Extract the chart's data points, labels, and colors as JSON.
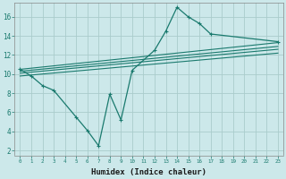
{
  "xlabel": "Humidex (Indice chaleur)",
  "background_color": "#cce8ea",
  "grid_color": "#aacccc",
  "line_color": "#1a7a6e",
  "xlim": [
    -0.5,
    23.5
  ],
  "ylim": [
    1.5,
    17.5
  ],
  "xtick_labels": [
    "0",
    "1",
    "2",
    "3",
    "4",
    "5",
    "6",
    "7",
    "8",
    "9",
    "10",
    "11",
    "12",
    "13",
    "14",
    "15",
    "16",
    "17",
    "18",
    "19",
    "20",
    "21",
    "22",
    "23"
  ],
  "ytick_labels": [
    "2",
    "4",
    "6",
    "8",
    "10",
    "12",
    "14",
    "16"
  ],
  "ytick_vals": [
    2,
    4,
    6,
    8,
    10,
    12,
    14,
    16
  ],
  "zigzag_x": [
    0,
    1,
    2,
    3,
    5,
    6,
    7,
    8,
    9,
    10,
    12,
    13,
    14,
    15,
    16,
    17,
    23
  ],
  "zigzag_y": [
    10.5,
    9.8,
    8.8,
    8.3,
    5.5,
    4.1,
    2.5,
    7.9,
    5.2,
    10.4,
    12.5,
    14.5,
    17.0,
    16.0,
    15.3,
    14.2,
    13.4
  ],
  "straight_lines": [
    {
      "x0": 0,
      "y0": 10.5,
      "x1": 23,
      "y1": 13.3
    },
    {
      "x0": 0,
      "y0": 10.3,
      "x1": 23,
      "y1": 12.9
    },
    {
      "x0": 0,
      "y0": 10.1,
      "x1": 23,
      "y1": 12.6
    },
    {
      "x0": 0,
      "y0": 9.8,
      "x1": 23,
      "y1": 12.2
    }
  ]
}
